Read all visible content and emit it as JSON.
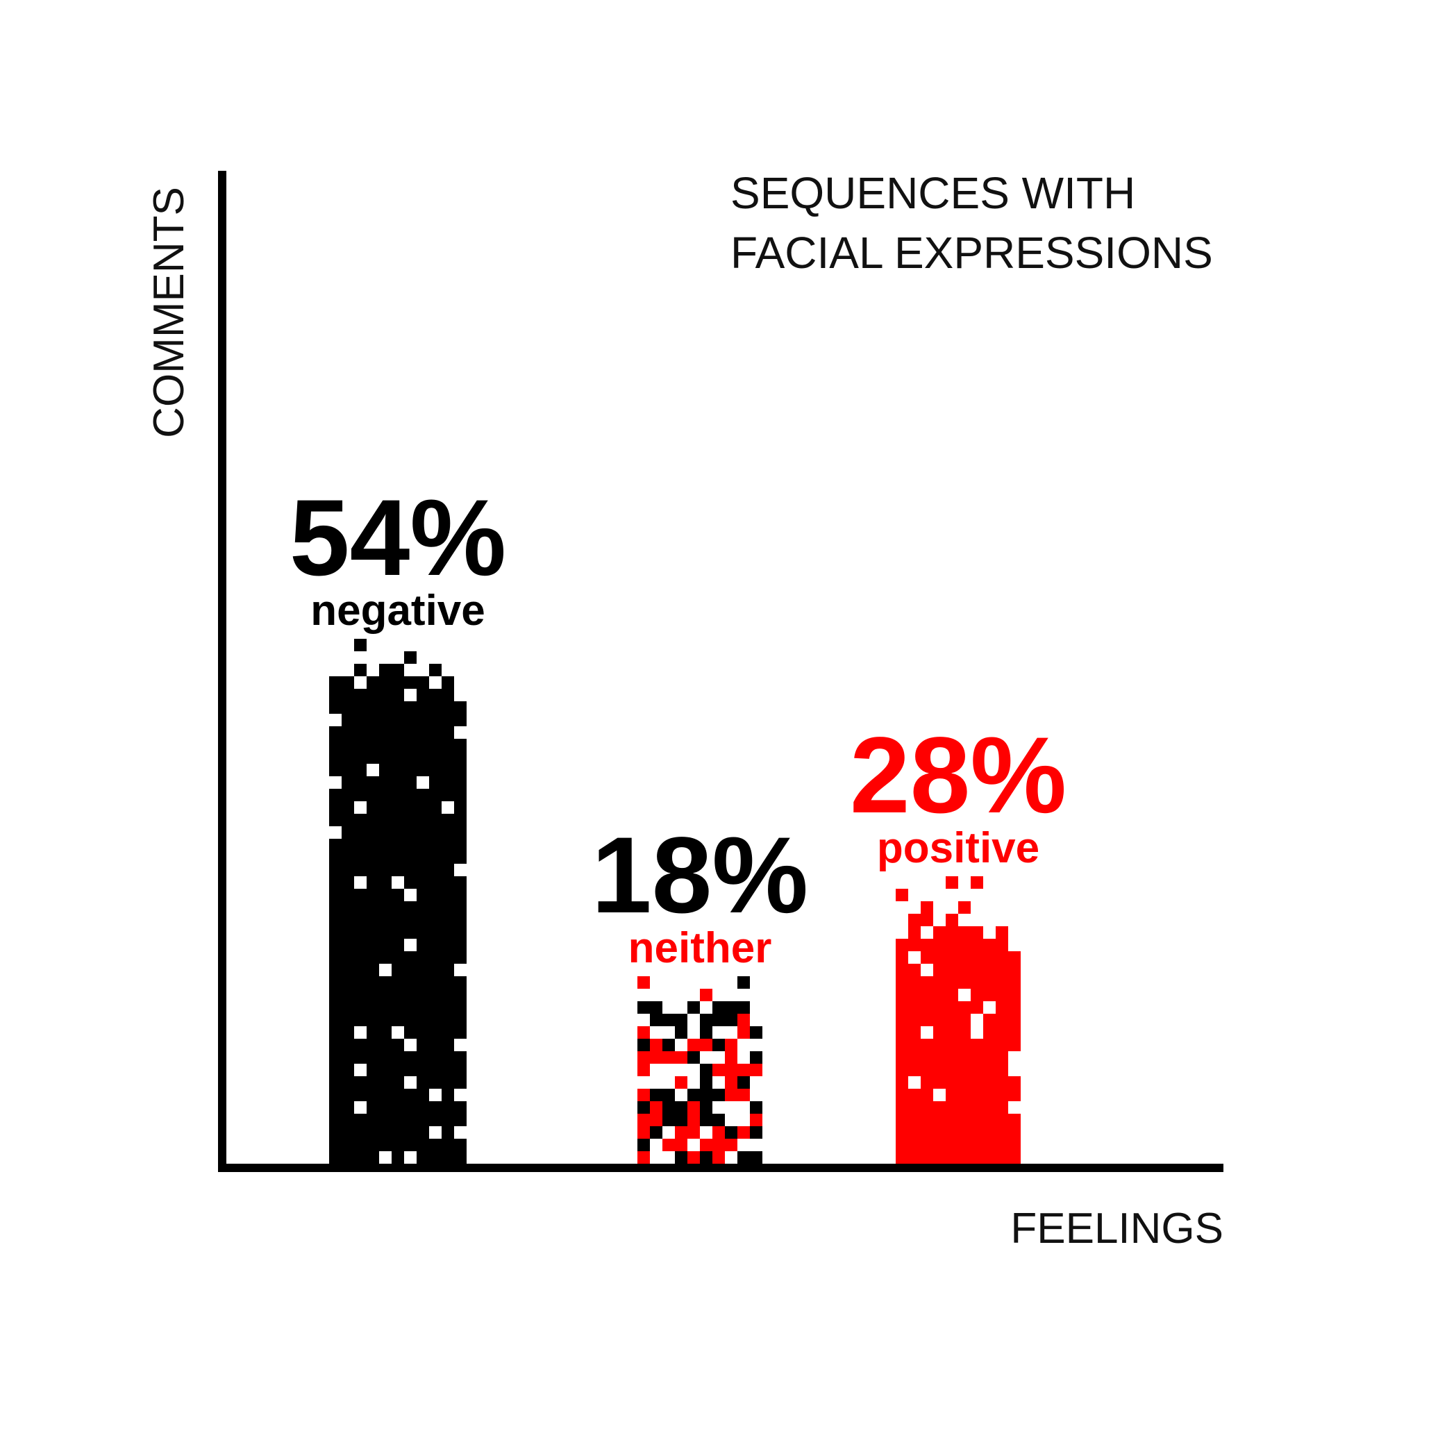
{
  "chart_data": {
    "type": "bar",
    "title_lines": [
      "SEQUENCES WITH",
      "FACIAL EXPRESSIONS"
    ],
    "xlabel": "FEELINGS",
    "ylabel": "COMMENTS",
    "ylim": [
      0,
      60
    ],
    "categories": [
      "negative",
      "neither",
      "positive"
    ],
    "values": [
      54,
      18,
      28
    ],
    "value_labels": [
      "54%",
      "18%",
      "28%"
    ],
    "value_label_colors": [
      "#000000",
      "#000000",
      "#ff0000"
    ],
    "category_label_colors": [
      "#000000",
      "#ff0000",
      "#ff0000"
    ],
    "bar_fill_colors": [
      [
        "#000000"
      ],
      [
        "#000000",
        "#ff0000"
      ],
      [
        "#ff0000"
      ]
    ],
    "bar_texture": "pixel-mosaic",
    "grid": false,
    "legend": "none"
  },
  "colors": {
    "background": "#ffffff",
    "axis": "#000000",
    "text": "#111111",
    "accent": "#ff0000"
  }
}
